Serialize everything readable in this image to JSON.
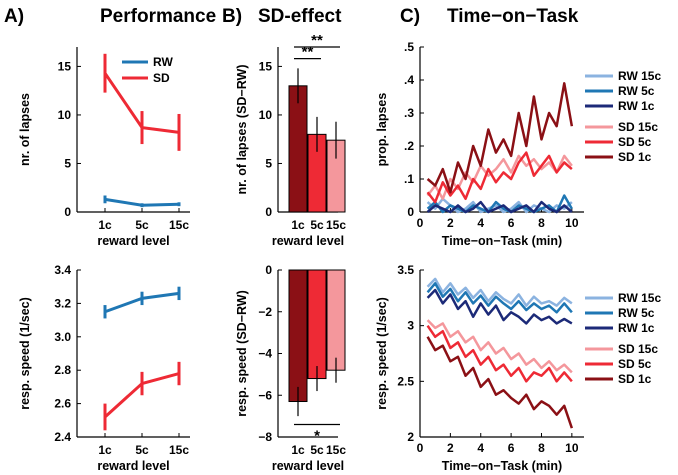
{
  "chart_data": [
    {
      "id": "A-top",
      "panel": "A)",
      "title": "Performance",
      "type": "line",
      "categories": [
        "1c",
        "5c",
        "15c"
      ],
      "xlabel": "reward level",
      "ylabel": "nr. of lapses",
      "ylim": [
        0,
        17
      ],
      "yticks": [
        0,
        5,
        10,
        15
      ],
      "series": [
        {
          "name": "RW",
          "color": "#1f77b4",
          "values": [
            1.3,
            0.7,
            0.8
          ],
          "err": [
            0.4,
            0.2,
            0.2
          ]
        },
        {
          "name": "SD",
          "color": "#ee2a35",
          "values": [
            14.3,
            8.7,
            8.2
          ],
          "err": [
            2.0,
            1.7,
            1.9
          ]
        }
      ]
    },
    {
      "id": "A-bottom",
      "type": "line",
      "categories": [
        "1c",
        "5c",
        "15c"
      ],
      "xlabel": "reward level",
      "ylabel": "resp. speed (1/sec)",
      "ylim": [
        2.4,
        3.4
      ],
      "yticks": [
        "2.4",
        "2.6",
        "2.8",
        "3.0",
        "3.2",
        "3.4"
      ],
      "series": [
        {
          "name": "RW",
          "color": "#1f77b4",
          "values": [
            3.15,
            3.23,
            3.26
          ],
          "err": [
            0.04,
            0.04,
            0.04
          ]
        },
        {
          "name": "SD",
          "color": "#ee2a35",
          "values": [
            2.52,
            2.72,
            2.78
          ],
          "err": [
            0.08,
            0.07,
            0.07
          ]
        }
      ]
    },
    {
      "id": "B-top",
      "panel": "B)",
      "title": "SD-effect",
      "type": "bar",
      "categories": [
        "1c",
        "5c",
        "15c"
      ],
      "xlabel": "reward level",
      "ylabel": "nr. of lapses (SD−RW)",
      "ylim": [
        0,
        17
      ],
      "yticks": [
        0,
        5,
        10,
        15
      ],
      "values": [
        13.0,
        8.0,
        7.4
      ],
      "err": [
        1.8,
        1.8,
        1.9
      ],
      "colors": [
        "#8b1015",
        "#ee2a35",
        "#f4979c"
      ],
      "significance": [
        {
          "from": 0,
          "to": 1,
          "label": "**",
          "y": 15.8
        },
        {
          "from": 0,
          "to": 2,
          "label": "**",
          "y": 17.0
        }
      ]
    },
    {
      "id": "B-bottom",
      "type": "bar",
      "categories": [
        "1c",
        "5c",
        "15c"
      ],
      "xlabel": "reward level",
      "ylabel": "resp. speed (SD−RW)",
      "ylim": [
        -8,
        0
      ],
      "yticks": [
        "−8",
        "−6",
        "−4",
        "−2",
        "0"
      ],
      "values": [
        -6.3,
        -5.2,
        -4.8
      ],
      "err": [
        0.7,
        0.6,
        0.6
      ],
      "colors": [
        "#8b1015",
        "#ee2a35",
        "#f4979c"
      ],
      "significance": [
        {
          "from": 0,
          "to": 2,
          "label": "*",
          "y": -7.4
        }
      ]
    },
    {
      "id": "C-top",
      "panel": "C)",
      "title": "Time−on−Task",
      "type": "line",
      "xlabel": "Time−on−Task (min)",
      "ylabel": "prop. lapses",
      "xlim": [
        0,
        10.8
      ],
      "ylim": [
        0,
        0.5
      ],
      "xticks": [
        "0",
        "2",
        "4",
        "6",
        "8",
        "10"
      ],
      "yticks": [
        "0",
        ".1",
        ".2",
        ".3",
        ".4",
        ".5"
      ],
      "x": [
        0.5,
        1,
        1.5,
        2,
        2.5,
        3,
        3.5,
        4,
        4.5,
        5,
        5.5,
        6,
        6.5,
        7,
        7.5,
        8,
        8.5,
        9,
        9.5,
        10
      ],
      "series": [
        {
          "name": "RW 15c",
          "color": "#8bb3e0",
          "values": [
            0.03,
            0.01,
            0.04,
            0.02,
            0.0,
            0.01,
            0.03,
            0.0,
            0.01,
            0.02,
            0.0,
            0.01,
            0.03,
            0.0,
            0.02,
            0.01,
            0.0,
            0.02,
            0.01,
            0.03
          ]
        },
        {
          "name": "RW 5c",
          "color": "#1f77b4",
          "values": [
            0.01,
            0.03,
            0.0,
            0.02,
            0.01,
            0.0,
            0.02,
            0.01,
            0.0,
            0.03,
            0.01,
            0.0,
            0.02,
            0.01,
            0.0,
            0.01,
            0.02,
            0.0,
            0.05,
            0.01
          ]
        },
        {
          "name": "RW 1c",
          "color": "#1c2a78",
          "values": [
            0.0,
            0.02,
            0.01,
            0.0,
            0.02,
            0.0,
            0.01,
            0.03,
            0.0,
            0.01,
            0.02,
            0.0,
            0.01,
            0.02,
            0.0,
            0.03,
            0.01,
            0.0,
            0.02,
            0.0
          ]
        },
        {
          "name": "SD 15c",
          "color": "#f4979c",
          "values": [
            0.05,
            0.08,
            0.04,
            0.1,
            0.07,
            0.12,
            0.09,
            0.14,
            0.11,
            0.13,
            0.16,
            0.12,
            0.17,
            0.14,
            0.16,
            0.13,
            0.15,
            0.12,
            0.17,
            0.14
          ]
        },
        {
          "name": "SD 5c",
          "color": "#ee2a35",
          "values": [
            0.06,
            0.03,
            0.09,
            0.05,
            0.08,
            0.04,
            0.1,
            0.07,
            0.13,
            0.09,
            0.12,
            0.1,
            0.15,
            0.18,
            0.11,
            0.14,
            0.17,
            0.12,
            0.15,
            0.13
          ]
        },
        {
          "name": "SD 1c",
          "color": "#8b1015",
          "values": [
            0.1,
            0.08,
            0.13,
            0.06,
            0.15,
            0.1,
            0.2,
            0.14,
            0.25,
            0.18,
            0.22,
            0.17,
            0.3,
            0.2,
            0.35,
            0.22,
            0.3,
            0.26,
            0.39,
            0.26
          ]
        }
      ]
    },
    {
      "id": "C-bottom",
      "type": "line",
      "xlabel": "Time−on−Task (min)",
      "ylabel": "resp. speed (1/sec)",
      "xlim": [
        0,
        10.8
      ],
      "ylim": [
        2,
        3.5
      ],
      "xticks": [
        "0",
        "2",
        "4",
        "6",
        "8",
        "10"
      ],
      "yticks": [
        "2",
        "2.5",
        "3",
        "3.5"
      ],
      "x": [
        0.5,
        1,
        1.5,
        2,
        2.5,
        3,
        3.5,
        4,
        4.5,
        5,
        5.5,
        6,
        6.5,
        7,
        7.5,
        8,
        8.5,
        9,
        9.5,
        10
      ],
      "series": [
        {
          "name": "RW 15c",
          "color": "#8bb3e0",
          "values": [
            3.35,
            3.42,
            3.3,
            3.38,
            3.28,
            3.34,
            3.25,
            3.32,
            3.22,
            3.3,
            3.24,
            3.2,
            3.28,
            3.18,
            3.26,
            3.2,
            3.22,
            3.18,
            3.25,
            3.2
          ]
        },
        {
          "name": "RW 5c",
          "color": "#1f77b4",
          "values": [
            3.3,
            3.38,
            3.26,
            3.33,
            3.22,
            3.3,
            3.2,
            3.27,
            3.18,
            3.26,
            3.2,
            3.15,
            3.22,
            3.14,
            3.2,
            3.15,
            3.18,
            3.12,
            3.2,
            3.12
          ]
        },
        {
          "name": "RW 1c",
          "color": "#1c2a78",
          "values": [
            3.25,
            3.32,
            3.2,
            3.28,
            3.15,
            3.22,
            3.08,
            3.2,
            3.1,
            3.18,
            3.05,
            3.12,
            3.08,
            3.02,
            3.1,
            3.05,
            3.08,
            3.02,
            3.06,
            3.02
          ]
        },
        {
          "name": "SD 15c",
          "color": "#f4979c",
          "values": [
            3.05,
            2.98,
            3.02,
            2.9,
            2.95,
            2.85,
            2.9,
            2.78,
            2.85,
            2.75,
            2.8,
            2.7,
            2.75,
            2.65,
            2.7,
            2.62,
            2.68,
            2.6,
            2.65,
            2.58
          ]
        },
        {
          "name": "SD 5c",
          "color": "#ee2a35",
          "values": [
            3.0,
            2.9,
            2.95,
            2.8,
            2.85,
            2.72,
            2.78,
            2.65,
            2.72,
            2.6,
            2.65,
            2.55,
            2.62,
            2.5,
            2.58,
            2.55,
            2.62,
            2.5,
            2.58,
            2.5
          ]
        },
        {
          "name": "SD 1c",
          "color": "#8b1015",
          "values": [
            2.9,
            2.78,
            2.82,
            2.68,
            2.72,
            2.55,
            2.62,
            2.45,
            2.52,
            2.38,
            2.42,
            2.35,
            2.3,
            2.38,
            2.25,
            2.32,
            2.28,
            2.2,
            2.28,
            2.08
          ]
        }
      ]
    }
  ]
}
